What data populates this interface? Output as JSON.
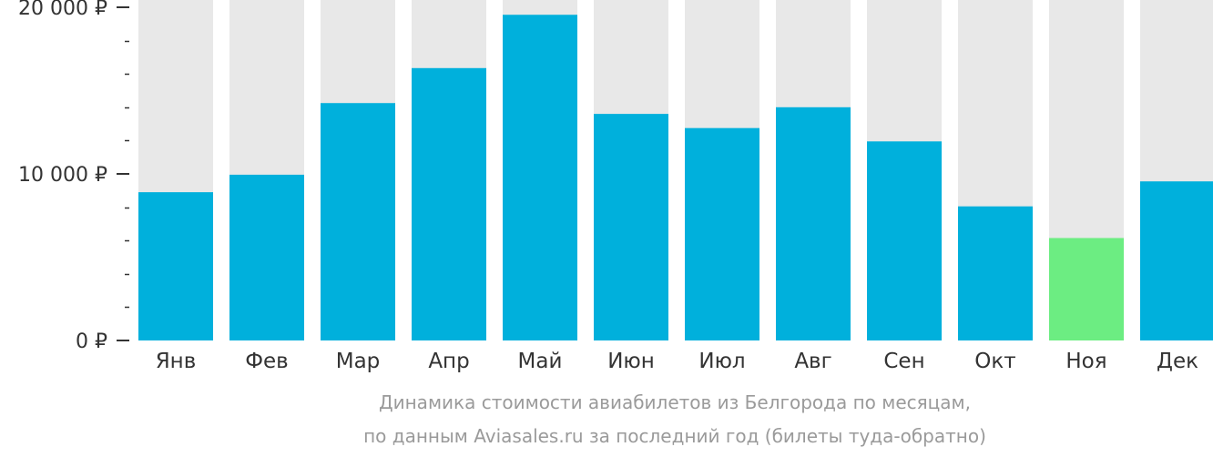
{
  "chart_data": {
    "type": "bar",
    "categories": [
      "Янв",
      "Фев",
      "Мар",
      "Апр",
      "Май",
      "Июн",
      "Июл",
      "Авг",
      "Сен",
      "Окт",
      "Ноя",
      "Дек"
    ],
    "values": [
      8900,
      9950,
      14250,
      16350,
      19550,
      13600,
      12750,
      14000,
      11950,
      8050,
      6150,
      9550
    ],
    "highlight_index": 10,
    "ylim": [
      0,
      20000
    ],
    "y_tick_labels": [
      {
        "value": 20000,
        "label": "20 000 ₽"
      },
      {
        "value": 10000,
        "label": "10 000 ₽"
      },
      {
        "value": 0,
        "label": "0 ₽"
      }
    ],
    "y_minor_step": 2000,
    "title": "",
    "xlabel": "",
    "ylabel": "",
    "grid": false,
    "colors": {
      "bar": "#00b0dc",
      "highlight": "#6ced82",
      "track": "#e8e8e8",
      "axis_text": "#333333",
      "tick": "#333333",
      "caption": "#9a9a9a"
    }
  },
  "caption": {
    "line1": "Динамика стоимости авиабилетов из Белгорода по месяцам,",
    "line2": "по данным Aviasales.ru за последний год (билеты туда-обратно)"
  }
}
